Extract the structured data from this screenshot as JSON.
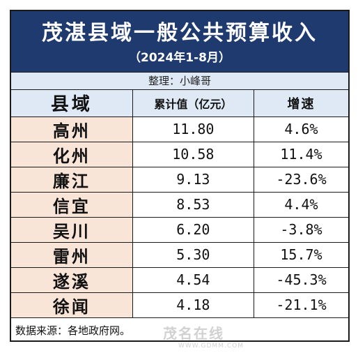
{
  "title": "茂湛县域一般公共预算收入",
  "subtitle": "（2024年1-8月）",
  "compiler": "整理：小峰哥",
  "columns": {
    "county": "县域",
    "value": "累计值（亿元）",
    "growth": "增速"
  },
  "rows": [
    {
      "county": "高州",
      "value": "11.80",
      "growth": "4.6%"
    },
    {
      "county": "化州",
      "value": "10.58",
      "growth": "11.4%"
    },
    {
      "county": "廉江",
      "value": "9.13",
      "growth": "-23.6%"
    },
    {
      "county": "信宜",
      "value": "8.53",
      "growth": "4.4%"
    },
    {
      "county": "吴川",
      "value": "6.20",
      "growth": "-3.8%"
    },
    {
      "county": "雷州",
      "value": "5.30",
      "growth": "15.7%"
    },
    {
      "county": "遂溪",
      "value": "4.54",
      "growth": "-45.3%"
    },
    {
      "county": "徐闻",
      "value": "4.18",
      "growth": "-21.1%"
    }
  ],
  "source": "数据来源：各地政府网。",
  "watermark": {
    "name": "茂名在线",
    "url": "WWW.GDMM.COM"
  },
  "colors": {
    "header_bg": "#1f3a6e",
    "header_text": "#ffffff",
    "subheader_bg": "#dfe9f6",
    "county_cell_bg": "#f9e4d8"
  },
  "chart_data": {
    "type": "table",
    "title": "茂湛县域一般公共预算收入",
    "subtitle": "（2024年1-8月）",
    "columns": [
      "县域",
      "累计值（亿元）",
      "增速"
    ],
    "categories": [
      "高州",
      "化州",
      "廉江",
      "信宜",
      "吴川",
      "雷州",
      "遂溪",
      "徐闻"
    ],
    "series": [
      {
        "name": "累计值（亿元）",
        "values": [
          11.8,
          10.58,
          9.13,
          8.53,
          6.2,
          5.3,
          4.54,
          4.18
        ]
      },
      {
        "name": "增速",
        "values": [
          4.6,
          11.4,
          -23.6,
          4.4,
          -3.8,
          15.7,
          -45.3,
          -21.1
        ]
      }
    ]
  }
}
